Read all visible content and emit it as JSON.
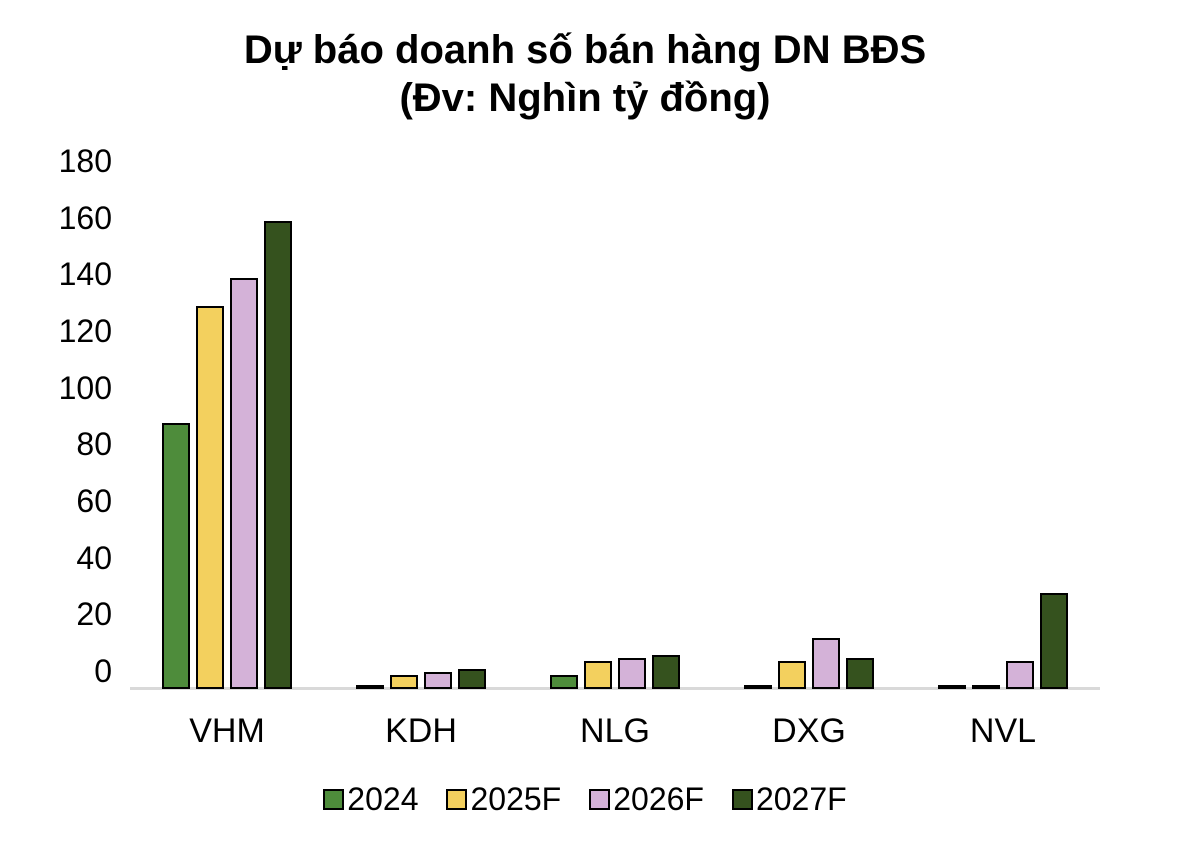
{
  "chart_data": {
    "type": "bar",
    "title": "Dự báo doanh số bán hàng DN BĐS",
    "subtitle": "(Đv: Nghìn tỷ đồng)",
    "categories": [
      "VHM",
      "KDH",
      "NLG",
      "DXG",
      "NVL"
    ],
    "series": [
      {
        "name": "2024",
        "color": "#4e8c3b",
        "values": [
          94,
          1,
          5,
          0.3,
          1
        ]
      },
      {
        "name": "2025F",
        "color": "#f3d05e",
        "values": [
          135,
          5,
          10,
          10,
          1
        ]
      },
      {
        "name": "2026F",
        "color": "#d4b2d8",
        "values": [
          145,
          6,
          11,
          18,
          10
        ]
      },
      {
        "name": "2027F",
        "color": "#35521e",
        "values": [
          165,
          7,
          12,
          11,
          34
        ]
      }
    ],
    "ylim": [
      0,
      180
    ],
    "yticks": [
      180,
      160,
      140,
      120,
      100,
      80,
      60,
      40,
      20,
      0
    ],
    "grid": false,
    "legend_position": "bottom",
    "axis_line_color": "#d9d9d9",
    "bar_outline_color": "#000000"
  }
}
